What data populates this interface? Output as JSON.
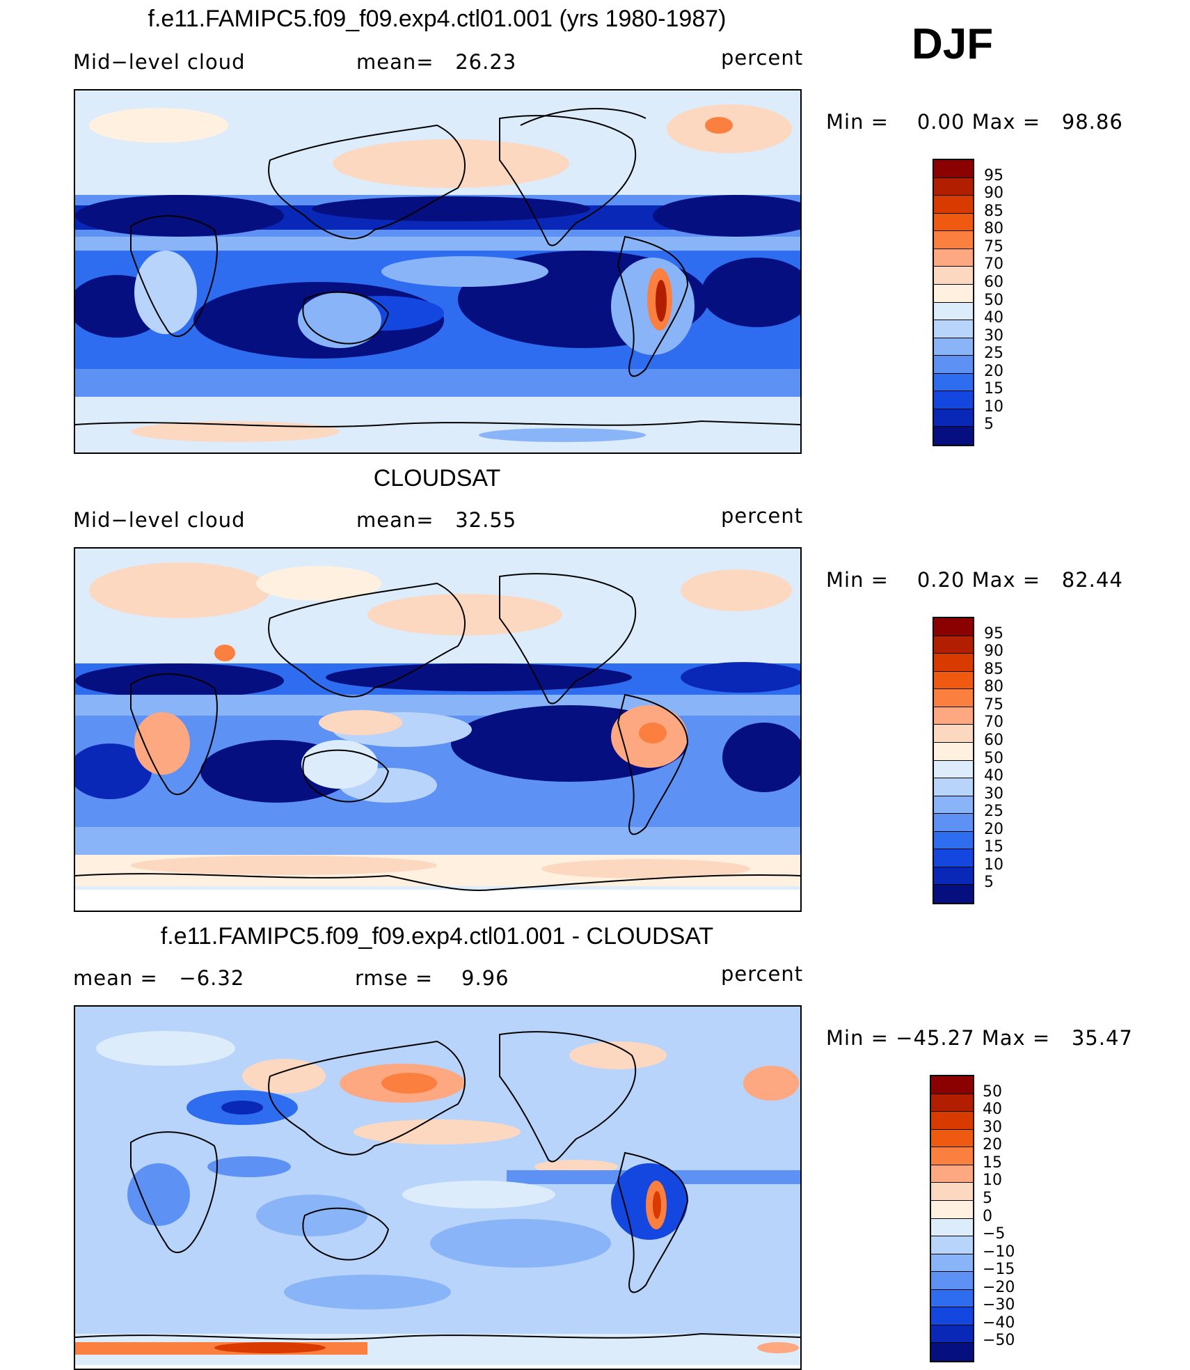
{
  "season": "DJF",
  "panels": [
    {
      "id": "model",
      "title": "f.e11.FAMIPC5.f09_f09.exp4.ctl01.001 (yrs 1980-1987)",
      "left_label": "Mid−level cloud",
      "center_label": "mean=   26.23",
      "right_label": "percent",
      "minmax": "Min =    0.00 Max =   98.86",
      "min": 0.0,
      "max": 98.86,
      "mean": 26.23,
      "colorbar": {
        "colors": [
          "#8b0000",
          "#b21e00",
          "#d83a00",
          "#f05a10",
          "#fb8040",
          "#fda880",
          "#fdd8c0",
          "#fff0e0",
          "#dcecfb",
          "#b8d4fb",
          "#8ab4f8",
          "#5d92f4",
          "#2f6df0",
          "#1446e0",
          "#0a28b8",
          "#050f80"
        ],
        "labels": [
          "95",
          "90",
          "85",
          "80",
          "75",
          "70",
          "60",
          "50",
          "40",
          "30",
          "25",
          "20",
          "15",
          "10",
          "5"
        ]
      }
    },
    {
      "id": "obs",
      "title": "CLOUDSAT",
      "left_label": "Mid−level cloud",
      "center_label": "mean=   32.55",
      "right_label": "percent",
      "minmax": "Min =    0.20 Max =   82.44",
      "min": 0.2,
      "max": 82.44,
      "mean": 32.55,
      "colorbar": {
        "colors": [
          "#8b0000",
          "#b21e00",
          "#d83a00",
          "#f05a10",
          "#fb8040",
          "#fda880",
          "#fdd8c0",
          "#fff0e0",
          "#dcecfb",
          "#b8d4fb",
          "#8ab4f8",
          "#5d92f4",
          "#2f6df0",
          "#1446e0",
          "#0a28b8",
          "#050f80"
        ],
        "labels": [
          "95",
          "90",
          "85",
          "80",
          "75",
          "70",
          "60",
          "50",
          "40",
          "30",
          "25",
          "20",
          "15",
          "10",
          "5"
        ]
      }
    },
    {
      "id": "diff",
      "title": "f.e11.FAMIPC5.f09_f09.exp4.ctl01.001 - CLOUDSAT",
      "left_label": "mean =   −6.32",
      "center_label": "rmse =    9.96",
      "right_label": "percent",
      "minmax": "Min = −45.27 Max =   35.47",
      "min": -45.27,
      "max": 35.47,
      "mean": -6.32,
      "rmse": 9.96,
      "colorbar": {
        "colors": [
          "#8b0000",
          "#b21e00",
          "#d83a00",
          "#f05a10",
          "#fb8040",
          "#fda880",
          "#fdd8c0",
          "#fff0e0",
          "#dcecfb",
          "#b8d4fb",
          "#8ab4f8",
          "#5d92f4",
          "#2f6df0",
          "#1446e0",
          "#0a28b8",
          "#050f80"
        ],
        "labels": [
          "50",
          "40",
          "30",
          "20",
          "15",
          "10",
          "5",
          "0",
          "−5",
          "−10",
          "−15",
          "−20",
          "−30",
          "−40",
          "−50"
        ]
      }
    }
  ]
}
